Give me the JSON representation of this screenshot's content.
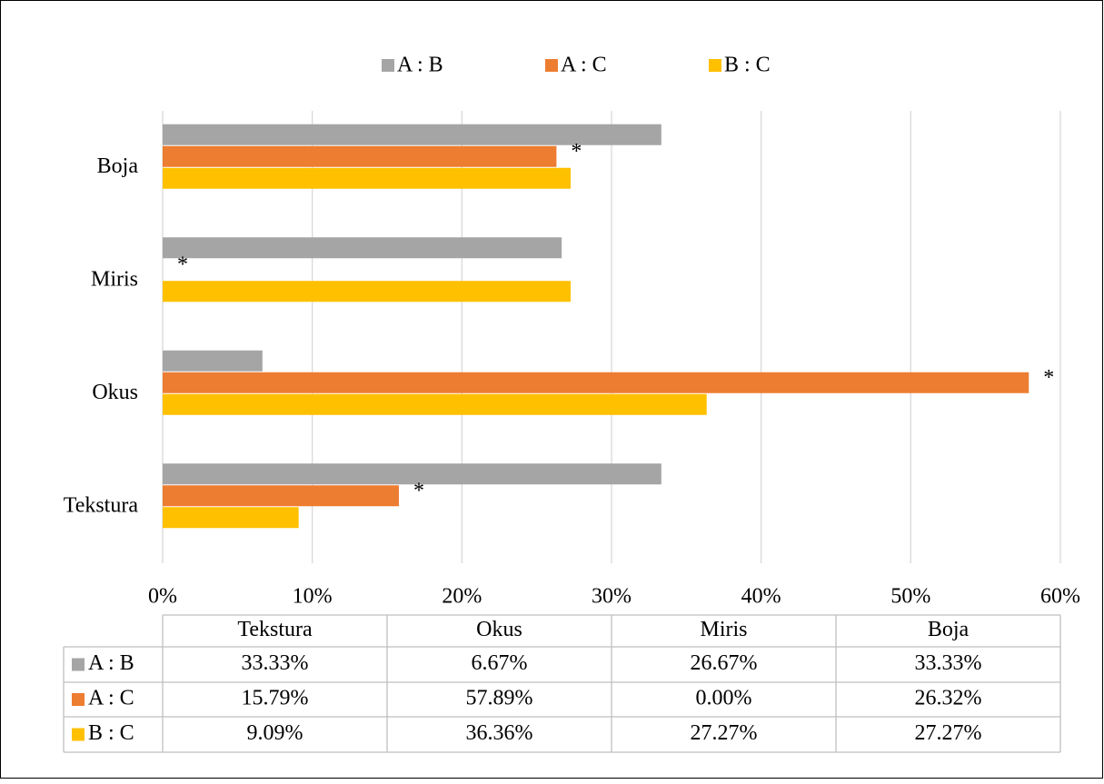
{
  "chart_data": {
    "type": "hbar",
    "categories": [
      "Tekstura",
      "Okus",
      "Miris",
      "Boja"
    ],
    "series": [
      {
        "name": "A : B",
        "color": "#a5a5a5",
        "values": [
          33.33,
          6.67,
          26.67,
          33.33
        ],
        "value_labels": [
          "33.33%",
          "6.67%",
          "26.67%",
          "33.33%"
        ]
      },
      {
        "name": "A : C",
        "color": "#ed7d31",
        "values": [
          15.79,
          57.89,
          0,
          26.32
        ],
        "value_labels": [
          "15.79%",
          "57.89%",
          "0.00%",
          "26.32%"
        ],
        "marker_labels": [
          "*",
          "*",
          "*",
          "*"
        ]
      },
      {
        "name": "B : C",
        "color": "#ffc000",
        "values": [
          9.09,
          36.36,
          27.27,
          27.27
        ],
        "value_labels": [
          "9.09%",
          "36.36%",
          "27.27%",
          "27.27%"
        ]
      }
    ],
    "xlim": [
      0,
      60
    ],
    "xticks": [
      {
        "value": 0,
        "label": "0%"
      },
      {
        "value": 10,
        "label": "10%"
      },
      {
        "value": 20,
        "label": "20%"
      },
      {
        "value": 30,
        "label": "30%"
      },
      {
        "value": 40,
        "label": "40%"
      },
      {
        "value": 50,
        "label": "50%"
      },
      {
        "value": 60,
        "label": "60%"
      }
    ],
    "grid": true,
    "legend": "top",
    "data_table": true
  }
}
